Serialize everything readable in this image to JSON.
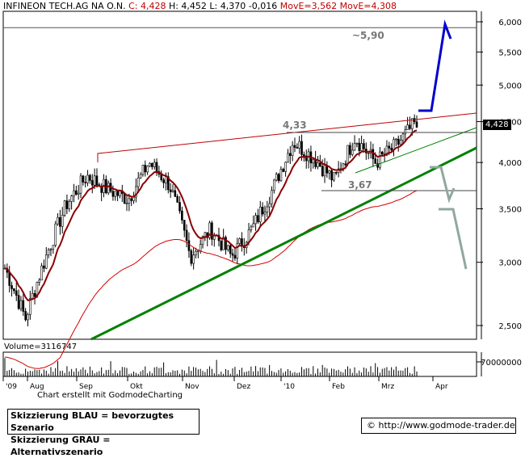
{
  "header": {
    "instrument": "INFINEON TECH.AG NA O.N.",
    "close": "C: 4,428",
    "high": "H: 4,452",
    "low": "L: 4,370",
    "change": "-0,016",
    "ma1": "MovE=3,562",
    "ma2": "MovE=4,308"
  },
  "volume_label": "Volume=3116747",
  "last_price_tag": "4,428",
  "credit": "Chart erstellt mit GodmodeCharting",
  "legend": {
    "line1": "Skizzierung BLAU = bevorzugtes Szenario",
    "line2": "Skizzierung GRAU = Alternativszenario"
  },
  "url": "© http://www.godmode-trader.de",
  "annotations": {
    "target": "~5,90",
    "level_high": "4,33",
    "level_low": "3,67"
  },
  "colors": {
    "candles": "#000000",
    "ma_fast": "#8b0000",
    "ma_slow": "#d40000",
    "trend_green": "#008000",
    "scenario_blue": "#0000cc",
    "scenario_grey": "#8fa8a0",
    "resistance": "#c00000"
  },
  "chart_data": {
    "type": "candlestick",
    "scale": "log",
    "ylim": [
      2.4,
      6.2
    ],
    "y_ticks": [
      "6,000",
      "5,500",
      "5,000",
      "4,500",
      "4,000",
      "3,500",
      "3,000",
      "2,500"
    ],
    "x_ticks": [
      "'09",
      "Aug",
      "Sep",
      "Okt",
      "Nov",
      "Dez",
      "'10",
      "Feb",
      "Mrz",
      "Apr"
    ],
    "volume_tick": "70000000",
    "price_path": [
      {
        "x": "'09",
        "y": 2.95
      },
      {
        "x": "Jul",
        "y": 2.55
      },
      {
        "x": "Aug",
        "y": 3.05
      },
      {
        "x": "Aug",
        "y": 3.55
      },
      {
        "x": "Sep",
        "y": 3.85
      },
      {
        "x": "Sep",
        "y": 3.7
      },
      {
        "x": "Okt",
        "y": 3.6
      },
      {
        "x": "Okt",
        "y": 4.0
      },
      {
        "x": "Okt",
        "y": 3.75
      },
      {
        "x": "Nov",
        "y": 3.05
      },
      {
        "x": "Nov",
        "y": 3.3
      },
      {
        "x": "Dez",
        "y": 3.05
      },
      {
        "x": "Dez",
        "y": 3.3
      },
      {
        "x": "Dez",
        "y": 3.7
      },
      {
        "x": "'10",
        "y": 4.25
      },
      {
        "x": "'10",
        "y": 4.05
      },
      {
        "x": "Feb",
        "y": 3.8
      },
      {
        "x": "Feb",
        "y": 4.3
      },
      {
        "x": "Feb",
        "y": 4.0
      },
      {
        "x": "Mrz",
        "y": 4.2
      },
      {
        "x": "Mrz",
        "y": 4.5
      }
    ],
    "levels": [
      {
        "label": "~5,90",
        "value": 5.9
      },
      {
        "label": "4,33",
        "value": 4.33
      },
      {
        "label": "3,67",
        "value": 3.67
      }
    ]
  }
}
